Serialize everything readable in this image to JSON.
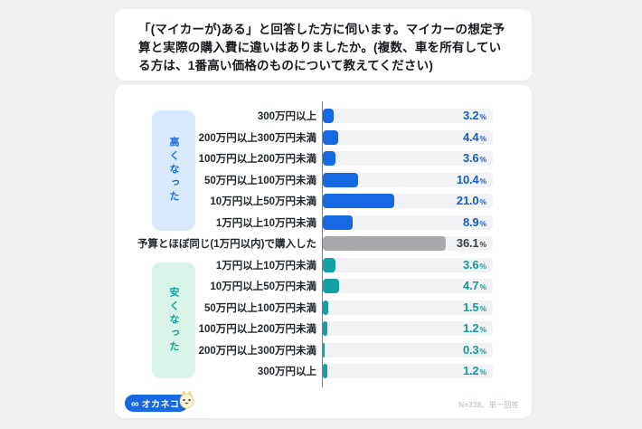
{
  "title": {
    "text": "「(マイカーが)ある」と回答した方に伺います。マイカーの想定予算と実際の購入費に違いはありましたか。(複数、車を所有している方は、1番高い価格のものについて教えてください)"
  },
  "chart_data": {
    "type": "bar",
    "orientation": "horizontal",
    "value_unit": "%",
    "axis_max": 50,
    "grid": false,
    "legend_position": "none",
    "groups": {
      "higher": {
        "label": "高くなった",
        "bar_color": "#1668e3",
        "box_color": "#d9e8fb",
        "value_color": "#155ecb"
      },
      "same": {
        "label": "予算とほぼ同じ",
        "bar_color": "#a7a8ab",
        "box_color": "",
        "value_color": "#3a3f44"
      },
      "lower": {
        "label": "安くなった",
        "bar_color": "#10a3a0",
        "box_color": "#d9f3e8",
        "value_color": "#0f9e9b"
      }
    },
    "rows": [
      {
        "label": "300万円以上",
        "value": 3.2,
        "display": "3.2",
        "group": "higher"
      },
      {
        "label": "200万円以上300万円未満",
        "value": 4.4,
        "display": "4.4",
        "group": "higher"
      },
      {
        "label": "100万円以上200万円未満",
        "value": 3.6,
        "display": "3.6",
        "group": "higher"
      },
      {
        "label": "50万円以上100万円未満",
        "value": 10.4,
        "display": "10.4",
        "group": "higher"
      },
      {
        "label": "10万円以上50万円未満",
        "value": 21.0,
        "display": "21.0",
        "group": "higher"
      },
      {
        "label": "1万円以上10万円未満",
        "value": 8.9,
        "display": "8.9",
        "group": "higher"
      },
      {
        "label": "予算とほぼ同じ(1万円以内)で購入した",
        "value": 36.1,
        "display": "36.1",
        "group": "same"
      },
      {
        "label": "1万円以上10万円未満",
        "value": 3.6,
        "display": "3.6",
        "group": "lower"
      },
      {
        "label": "10万円以上50万円未満",
        "value": 4.7,
        "display": "4.7",
        "group": "lower"
      },
      {
        "label": "50万円以上100万円未満",
        "value": 1.5,
        "display": "1.5",
        "group": "lower"
      },
      {
        "label": "100万円以上200万円未満",
        "value": 1.2,
        "display": "1.2",
        "group": "lower"
      },
      {
        "label": "200万円以上300万円未満",
        "value": 0.3,
        "display": "0.3",
        "group": "lower"
      },
      {
        "label": "300万円以上",
        "value": 1.2,
        "display": "1.2",
        "group": "lower"
      }
    ]
  },
  "footer": {
    "logo_icon": "∞",
    "logo_text": "オカネコ",
    "note": "N=338、単一回答"
  },
  "colors": {
    "page_bg": "#eff0f2",
    "card_bg": "#ffffff",
    "track": "#f1f2f4",
    "axis": "#7d8288",
    "title_text": "#16191d",
    "label_text": "#23282e",
    "note_text": "#b4b7bb",
    "logo_bg": "#1668e3"
  }
}
